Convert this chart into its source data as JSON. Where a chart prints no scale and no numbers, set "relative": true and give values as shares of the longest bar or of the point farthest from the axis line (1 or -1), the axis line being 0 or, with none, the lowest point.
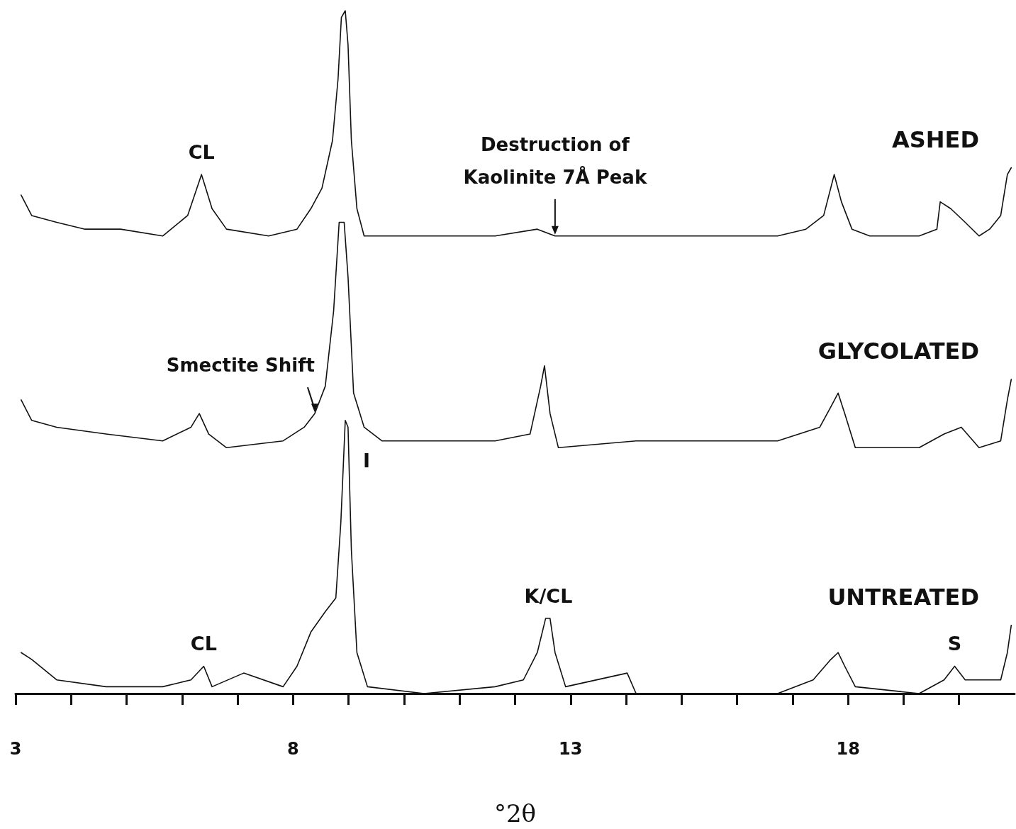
{
  "chart_data": {
    "type": "line",
    "relative": true,
    "xlabel": "°2θ",
    "xlim": [
      3,
      21
    ],
    "xticks": [
      3,
      {
        "value": 4,
        "label": null
      },
      {
        "value": 5,
        "label": null
      },
      {
        "value": 6,
        "label": null
      },
      {
        "value": 7,
        "label": null
      },
      8,
      {
        "value": 9,
        "label": null
      },
      {
        "value": 10,
        "label": null
      },
      {
        "value": 11,
        "label": null
      },
      {
        "value": 12,
        "label": null
      },
      13,
      {
        "value": 14,
        "label": null
      },
      {
        "value": 15,
        "label": null
      },
      {
        "value": 16,
        "label": null
      },
      {
        "value": 17,
        "label": null
      },
      18,
      {
        "value": 19,
        "label": null
      },
      {
        "value": 20,
        "label": null
      }
    ],
    "grid": false,
    "legend": false,
    "marker": "none",
    "line_style": "solid",
    "tick_labels": "x",
    "series": [
      {
        "name": "ASHED",
        "color": "#111111",
        "x": [
          3.1,
          3.29,
          3.74,
          4.25,
          4.89,
          5.65,
          6.1,
          6.35,
          6.54,
          6.8,
          7.56,
          8.07,
          8.32,
          8.52,
          8.71,
          8.81,
          8.87,
          8.94,
          8.99,
          9.05,
          9.15,
          9.28,
          9.47,
          10.36,
          11.64,
          12.4,
          12.72,
          14.18,
          15.46,
          16.73,
          17.24,
          17.56,
          17.75,
          17.88,
          18.07,
          18.39,
          19.28,
          19.6,
          19.66,
          19.85,
          20.11,
          20.36,
          20.55,
          20.75,
          20.87,
          20.94
        ],
        "values": [
          0.73,
          0.7,
          0.69,
          0.68,
          0.68,
          0.67,
          0.7,
          0.76,
          0.71,
          0.68,
          0.67,
          0.68,
          0.71,
          0.74,
          0.81,
          0.9,
          0.99,
          1.0,
          0.95,
          0.81,
          0.71,
          0.67,
          0.67,
          0.67,
          0.67,
          0.68,
          0.67,
          0.67,
          0.67,
          0.67,
          0.68,
          0.7,
          0.76,
          0.72,
          0.68,
          0.67,
          0.67,
          0.68,
          0.72,
          0.71,
          0.69,
          0.67,
          0.68,
          0.7,
          0.76,
          0.77
        ]
      },
      {
        "name": "GLYCOLATED",
        "color": "#111111",
        "x": [
          3.1,
          3.29,
          3.74,
          4.63,
          5.65,
          6.16,
          6.31,
          6.48,
          6.8,
          7.82,
          8.2,
          8.39,
          8.58,
          8.73,
          8.83,
          8.92,
          8.99,
          9.09,
          9.28,
          9.6,
          11.64,
          12.27,
          12.46,
          12.53,
          12.63,
          12.78,
          14.18,
          16.73,
          17.49,
          17.69,
          17.82,
          17.94,
          18.13,
          19.28,
          19.73,
          20.04,
          20.36,
          20.75,
          20.87,
          20.94
        ],
        "values": [
          0.43,
          0.4,
          0.39,
          0.38,
          0.37,
          0.39,
          0.41,
          0.38,
          0.36,
          0.37,
          0.39,
          0.41,
          0.45,
          0.56,
          0.69,
          0.69,
          0.61,
          0.44,
          0.39,
          0.37,
          0.37,
          0.38,
          0.45,
          0.48,
          0.41,
          0.36,
          0.37,
          0.37,
          0.39,
          0.42,
          0.44,
          0.41,
          0.36,
          0.36,
          0.38,
          0.39,
          0.36,
          0.37,
          0.43,
          0.46
        ]
      },
      {
        "name": "UNTREATED",
        "color": "#111111",
        "x": [
          3.1,
          3.29,
          3.74,
          4.63,
          5.65,
          6.16,
          6.39,
          6.54,
          7.11,
          7.82,
          8.07,
          8.32,
          8.58,
          8.77,
          8.86,
          8.94,
          8.99,
          9.05,
          9.15,
          9.34,
          10.36,
          11.64,
          12.15,
          12.4,
          12.55,
          12.63,
          12.72,
          12.91,
          14.02,
          14.18,
          16.73,
          17.37,
          17.69,
          17.82,
          17.94,
          18.13,
          19.28,
          19.73,
          19.92,
          20.11,
          20.75,
          20.87,
          20.94
        ],
        "values": [
          0.06,
          0.05,
          0.02,
          0.01,
          0.01,
          0.02,
          0.04,
          0.01,
          0.03,
          0.01,
          0.04,
          0.09,
          0.12,
          0.14,
          0.25,
          0.4,
          0.39,
          0.21,
          0.06,
          0.01,
          0.0,
          0.01,
          0.02,
          0.06,
          0.11,
          0.11,
          0.06,
          0.01,
          0.03,
          0.0,
          0.0,
          0.02,
          0.05,
          0.06,
          0.04,
          0.01,
          0.0,
          0.02,
          0.04,
          0.02,
          0.02,
          0.06,
          0.1
        ]
      }
    ],
    "annotations": [
      {
        "text": "CL",
        "x": 6.35,
        "y": 0.76
      },
      {
        "text": "Destruction of\nKaolinite 7Å Peak",
        "x": 12.72,
        "y": 0.67
      },
      {
        "text": "Smectite Shift",
        "x": 8.39,
        "y": 0.41
      },
      {
        "text": "I",
        "x": 8.94,
        "y": 0.4
      },
      {
        "text": "K/CL",
        "x": 12.6,
        "y": 0.11
      },
      {
        "text": "CL",
        "x": 6.39,
        "y": 0.04
      },
      {
        "text": "S",
        "x": 19.92,
        "y": 0.04
      }
    ]
  }
}
